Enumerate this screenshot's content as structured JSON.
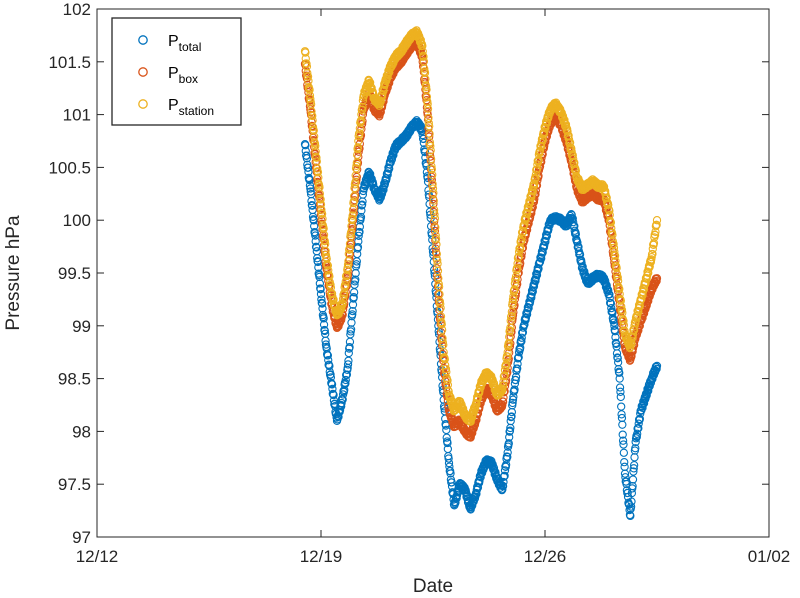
{
  "chart_data": {
    "type": "scatter",
    "xlabel": "Date",
    "ylabel": "Pressure hPa",
    "x_ticks": [
      "12/12",
      "12/19",
      "12/26",
      "01/02"
    ],
    "y_ticks": [
      "97",
      "97.5",
      "98",
      "98.5",
      "99",
      "99.5",
      "100",
      "100.5",
      "101",
      "101.5",
      "102"
    ],
    "xlim": [
      "2018-12-12",
      "2019-01-02"
    ],
    "ylim": [
      97,
      102
    ],
    "grid": false,
    "legend_position": "top-left",
    "series": [
      {
        "name": "P_total",
        "legend_main": "P",
        "legend_sub": "total",
        "color": "#0072BD",
        "points": [
          [
            "2018-12-18 12:00",
            100.72
          ],
          [
            "2018-12-18 16:00",
            100.3
          ],
          [
            "2018-12-18 20:00",
            99.8
          ],
          [
            "2018-12-19 00:00",
            99.3
          ],
          [
            "2018-12-19 04:00",
            98.8
          ],
          [
            "2018-12-19 08:00",
            98.45
          ],
          [
            "2018-12-19 12:00",
            98.1
          ],
          [
            "2018-12-19 16:00",
            98.3
          ],
          [
            "2018-12-19 20:00",
            98.6
          ],
          [
            "2018-12-20 00:00",
            99.2
          ],
          [
            "2018-12-20 04:00",
            99.8
          ],
          [
            "2018-12-20 08:00",
            100.3
          ],
          [
            "2018-12-20 12:00",
            100.45
          ],
          [
            "2018-12-20 16:00",
            100.3
          ],
          [
            "2018-12-20 20:00",
            100.2
          ],
          [
            "2018-12-21 00:00",
            100.35
          ],
          [
            "2018-12-21 04:00",
            100.55
          ],
          [
            "2018-12-21 08:00",
            100.7
          ],
          [
            "2018-12-21 12:00",
            100.75
          ],
          [
            "2018-12-21 16:00",
            100.8
          ],
          [
            "2018-12-21 20:00",
            100.88
          ],
          [
            "2018-12-22 00:00",
            100.93
          ],
          [
            "2018-12-22 04:00",
            100.85
          ],
          [
            "2018-12-22 08:00",
            100.4
          ],
          [
            "2018-12-22 12:00",
            99.7
          ],
          [
            "2018-12-22 16:00",
            99.0
          ],
          [
            "2018-12-22 20:00",
            98.3
          ],
          [
            "2018-12-23 00:00",
            97.7
          ],
          [
            "2018-12-23 04:00",
            97.3
          ],
          [
            "2018-12-23 08:00",
            97.5
          ],
          [
            "2018-12-23 12:00",
            97.45
          ],
          [
            "2018-12-23 16:00",
            97.27
          ],
          [
            "2018-12-23 20:00",
            97.4
          ],
          [
            "2018-12-24 00:00",
            97.6
          ],
          [
            "2018-12-24 04:00",
            97.72
          ],
          [
            "2018-12-24 08:00",
            97.7
          ],
          [
            "2018-12-24 12:00",
            97.55
          ],
          [
            "2018-12-24 16:00",
            97.45
          ],
          [
            "2018-12-24 20:00",
            97.8
          ],
          [
            "2018-12-25 00:00",
            98.3
          ],
          [
            "2018-12-25 04:00",
            98.7
          ],
          [
            "2018-12-25 08:00",
            99.0
          ],
          [
            "2018-12-25 12:00",
            99.2
          ],
          [
            "2018-12-25 16:00",
            99.4
          ],
          [
            "2018-12-25 20:00",
            99.6
          ],
          [
            "2018-12-26 00:00",
            99.8
          ],
          [
            "2018-12-26 04:00",
            100.0
          ],
          [
            "2018-12-26 08:00",
            100.02
          ],
          [
            "2018-12-26 12:00",
            100.0
          ],
          [
            "2018-12-26 16:00",
            99.95
          ],
          [
            "2018-12-26 20:00",
            100.05
          ],
          [
            "2018-12-27 00:00",
            99.8
          ],
          [
            "2018-12-27 04:00",
            99.55
          ],
          [
            "2018-12-27 08:00",
            99.4
          ],
          [
            "2018-12-27 12:00",
            99.45
          ],
          [
            "2018-12-27 16:00",
            99.48
          ],
          [
            "2018-12-27 20:00",
            99.45
          ],
          [
            "2018-12-28 00:00",
            99.3
          ],
          [
            "2018-12-28 04:00",
            99.0
          ],
          [
            "2018-12-28 08:00",
            98.5
          ],
          [
            "2018-12-28 12:00",
            97.6
          ],
          [
            "2018-12-28 16:00",
            97.2
          ],
          [
            "2018-12-28 20:00",
            97.9
          ],
          [
            "2018-12-29 00:00",
            98.2
          ],
          [
            "2018-12-29 04:00",
            98.35
          ],
          [
            "2018-12-29 08:00",
            98.5
          ],
          [
            "2018-12-29 12:00",
            98.62
          ]
        ]
      },
      {
        "name": "P_box",
        "legend_main": "P",
        "legend_sub": "box",
        "color": "#D95319",
        "points": [
          [
            "2018-12-18 12:00",
            101.48
          ],
          [
            "2018-12-18 16:00",
            101.05
          ],
          [
            "2018-12-18 20:00",
            100.55
          ],
          [
            "2018-12-19 00:00",
            100.05
          ],
          [
            "2018-12-19 04:00",
            99.55
          ],
          [
            "2018-12-19 08:00",
            99.2
          ],
          [
            "2018-12-19 12:00",
            98.98
          ],
          [
            "2018-12-19 16:00",
            99.1
          ],
          [
            "2018-12-19 20:00",
            99.45
          ],
          [
            "2018-12-20 00:00",
            100.0
          ],
          [
            "2018-12-20 04:00",
            100.6
          ],
          [
            "2018-12-20 08:00",
            101.05
          ],
          [
            "2018-12-20 12:00",
            101.2
          ],
          [
            "2018-12-20 16:00",
            101.05
          ],
          [
            "2018-12-20 20:00",
            101.0
          ],
          [
            "2018-12-21 00:00",
            101.2
          ],
          [
            "2018-12-21 04:00",
            101.35
          ],
          [
            "2018-12-21 08:00",
            101.45
          ],
          [
            "2018-12-21 12:00",
            101.5
          ],
          [
            "2018-12-21 16:00",
            101.58
          ],
          [
            "2018-12-21 20:00",
            101.65
          ],
          [
            "2018-12-22 00:00",
            101.68
          ],
          [
            "2018-12-22 04:00",
            101.55
          ],
          [
            "2018-12-22 08:00",
            101.0
          ],
          [
            "2018-12-22 12:00",
            100.2
          ],
          [
            "2018-12-22 16:00",
            99.3
          ],
          [
            "2018-12-22 20:00",
            98.6
          ],
          [
            "2018-12-23 00:00",
            98.2
          ],
          [
            "2018-12-23 04:00",
            98.05
          ],
          [
            "2018-12-23 08:00",
            98.1
          ],
          [
            "2018-12-23 12:00",
            98.0
          ],
          [
            "2018-12-23 16:00",
            97.95
          ],
          [
            "2018-12-23 20:00",
            98.1
          ],
          [
            "2018-12-24 00:00",
            98.3
          ],
          [
            "2018-12-24 04:00",
            98.4
          ],
          [
            "2018-12-24 08:00",
            98.35
          ],
          [
            "2018-12-24 12:00",
            98.2
          ],
          [
            "2018-12-24 16:00",
            98.25
          ],
          [
            "2018-12-24 20:00",
            98.6
          ],
          [
            "2018-12-25 00:00",
            99.1
          ],
          [
            "2018-12-25 04:00",
            99.5
          ],
          [
            "2018-12-25 08:00",
            99.8
          ],
          [
            "2018-12-25 12:00",
            100.0
          ],
          [
            "2018-12-25 16:00",
            100.2
          ],
          [
            "2018-12-25 20:00",
            100.5
          ],
          [
            "2018-12-26 00:00",
            100.75
          ],
          [
            "2018-12-26 04:00",
            100.92
          ],
          [
            "2018-12-26 08:00",
            100.98
          ],
          [
            "2018-12-26 12:00",
            100.9
          ],
          [
            "2018-12-26 16:00",
            100.75
          ],
          [
            "2018-12-26 20:00",
            100.55
          ],
          [
            "2018-12-27 00:00",
            100.3
          ],
          [
            "2018-12-27 04:00",
            100.18
          ],
          [
            "2018-12-27 08:00",
            100.22
          ],
          [
            "2018-12-27 12:00",
            100.25
          ],
          [
            "2018-12-27 16:00",
            100.2
          ],
          [
            "2018-12-27 20:00",
            100.2
          ],
          [
            "2018-12-28 00:00",
            100.0
          ],
          [
            "2018-12-28 04:00",
            99.6
          ],
          [
            "2018-12-28 08:00",
            99.2
          ],
          [
            "2018-12-28 12:00",
            98.8
          ],
          [
            "2018-12-28 16:00",
            98.68
          ],
          [
            "2018-12-28 20:00",
            98.9
          ],
          [
            "2018-12-29 00:00",
            99.05
          ],
          [
            "2018-12-29 04:00",
            99.2
          ],
          [
            "2018-12-29 08:00",
            99.35
          ],
          [
            "2018-12-29 12:00",
            99.45
          ]
        ]
      },
      {
        "name": "P_station",
        "legend_main": "P",
        "legend_sub": "station",
        "color": "#EDB120",
        "points": [
          [
            "2018-12-18 12:00",
            101.6
          ],
          [
            "2018-12-18 16:00",
            101.15
          ],
          [
            "2018-12-18 20:00",
            100.65
          ],
          [
            "2018-12-19 00:00",
            100.15
          ],
          [
            "2018-12-19 04:00",
            99.65
          ],
          [
            "2018-12-19 08:00",
            99.3
          ],
          [
            "2018-12-19 12:00",
            99.1
          ],
          [
            "2018-12-19 16:00",
            99.2
          ],
          [
            "2018-12-19 20:00",
            99.55
          ],
          [
            "2018-12-20 00:00",
            100.1
          ],
          [
            "2018-12-20 04:00",
            100.75
          ],
          [
            "2018-12-20 08:00",
            101.18
          ],
          [
            "2018-12-20 12:00",
            101.32
          ],
          [
            "2018-12-20 16:00",
            101.15
          ],
          [
            "2018-12-20 20:00",
            101.1
          ],
          [
            "2018-12-21 00:00",
            101.3
          ],
          [
            "2018-12-21 04:00",
            101.45
          ],
          [
            "2018-12-21 08:00",
            101.55
          ],
          [
            "2018-12-21 12:00",
            101.6
          ],
          [
            "2018-12-21 16:00",
            101.68
          ],
          [
            "2018-12-21 20:00",
            101.75
          ],
          [
            "2018-12-22 00:00",
            101.78
          ],
          [
            "2018-12-22 04:00",
            101.65
          ],
          [
            "2018-12-22 08:00",
            101.1
          ],
          [
            "2018-12-22 12:00",
            100.3
          ],
          [
            "2018-12-22 16:00",
            99.45
          ],
          [
            "2018-12-22 20:00",
            98.75
          ],
          [
            "2018-12-23 00:00",
            98.35
          ],
          [
            "2018-12-23 04:00",
            98.2
          ],
          [
            "2018-12-23 08:00",
            98.28
          ],
          [
            "2018-12-23 12:00",
            98.15
          ],
          [
            "2018-12-23 16:00",
            98.1
          ],
          [
            "2018-12-23 20:00",
            98.25
          ],
          [
            "2018-12-24 00:00",
            98.45
          ],
          [
            "2018-12-24 04:00",
            98.55
          ],
          [
            "2018-12-24 08:00",
            98.5
          ],
          [
            "2018-12-24 12:00",
            98.35
          ],
          [
            "2018-12-24 16:00",
            98.4
          ],
          [
            "2018-12-24 20:00",
            98.75
          ],
          [
            "2018-12-25 00:00",
            99.25
          ],
          [
            "2018-12-25 04:00",
            99.65
          ],
          [
            "2018-12-25 08:00",
            99.95
          ],
          [
            "2018-12-25 12:00",
            100.15
          ],
          [
            "2018-12-25 16:00",
            100.35
          ],
          [
            "2018-12-25 20:00",
            100.65
          ],
          [
            "2018-12-26 00:00",
            100.88
          ],
          [
            "2018-12-26 04:00",
            101.05
          ],
          [
            "2018-12-26 08:00",
            101.1
          ],
          [
            "2018-12-26 12:00",
            101.02
          ],
          [
            "2018-12-26 16:00",
            100.88
          ],
          [
            "2018-12-26 20:00",
            100.65
          ],
          [
            "2018-12-27 00:00",
            100.4
          ],
          [
            "2018-12-27 04:00",
            100.3
          ],
          [
            "2018-12-27 08:00",
            100.33
          ],
          [
            "2018-12-27 12:00",
            100.37
          ],
          [
            "2018-12-27 16:00",
            100.32
          ],
          [
            "2018-12-27 20:00",
            100.32
          ],
          [
            "2018-12-28 00:00",
            100.1
          ],
          [
            "2018-12-28 04:00",
            99.7
          ],
          [
            "2018-12-28 08:00",
            99.3
          ],
          [
            "2018-12-28 12:00",
            98.92
          ],
          [
            "2018-12-28 16:00",
            98.8
          ],
          [
            "2018-12-28 20:00",
            99.05
          ],
          [
            "2018-12-29 00:00",
            99.25
          ],
          [
            "2018-12-29 04:00",
            99.45
          ],
          [
            "2018-12-29 08:00",
            99.65
          ],
          [
            "2018-12-29 12:00",
            100.0
          ]
        ]
      }
    ]
  }
}
